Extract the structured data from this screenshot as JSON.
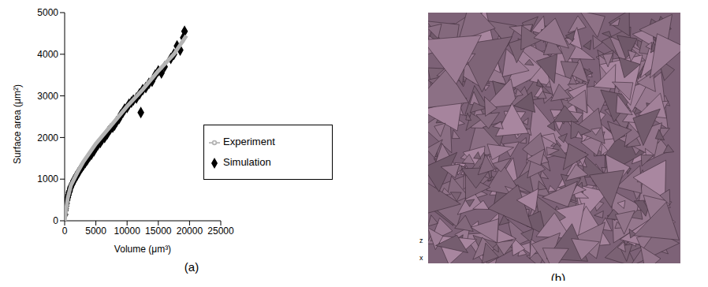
{
  "chart_data": {
    "type": "scatter",
    "title": "(a)",
    "x_label": "Volume (μm³)",
    "y_label": "Surface area (μm²)",
    "xlim": [
      0,
      25000
    ],
    "xticks": [
      0,
      5000,
      10000,
      15000,
      20000,
      25000
    ],
    "ylim": [
      0,
      5000
    ],
    "yticks": [
      0,
      1000,
      2000,
      3000,
      4000,
      5000
    ],
    "grid": false,
    "legend": "right",
    "series": [
      {
        "name": "Simulation",
        "color": "#000000",
        "marker": "diamond",
        "x": [
          50,
          100,
          150,
          200,
          300,
          400,
          500,
          600,
          700,
          800,
          900,
          1000,
          1200,
          1400,
          1600,
          1800,
          2000,
          2200,
          2500,
          2800,
          3000,
          3300,
          3600,
          4000,
          4300,
          4700,
          5000,
          5300,
          5700,
          6000,
          6400,
          6800,
          7000,
          7300,
          7700,
          8000,
          8300,
          8700,
          9000,
          9300,
          9600,
          10000,
          10300,
          10700,
          11000,
          11500,
          12000,
          12200,
          12500,
          13000,
          13500,
          14000,
          14500,
          15000,
          15500,
          16000,
          17000,
          17500,
          18000,
          18500,
          19000,
          19200
        ],
        "values": [
          150,
          250,
          300,
          350,
          420,
          500,
          560,
          620,
          680,
          720,
          780,
          820,
          880,
          950,
          1000,
          1060,
          1100,
          1160,
          1230,
          1300,
          1340,
          1400,
          1460,
          1550,
          1600,
          1680,
          1760,
          1820,
          1880,
          1950,
          2000,
          2080,
          2150,
          2200,
          2250,
          2300,
          2380,
          2450,
          2550,
          2600,
          2680,
          2720,
          2800,
          2850,
          2900,
          2950,
          3050,
          2600,
          3150,
          3200,
          3300,
          3350,
          3500,
          3600,
          3550,
          3700,
          3900,
          4000,
          4200,
          4100,
          4400,
          4550
        ]
      },
      {
        "name": "Experiment",
        "color": "#b4b4b4",
        "type": "line",
        "x": [
          0,
          500,
          1000,
          2000,
          3000,
          5000,
          7500,
          10000,
          12500,
          15000,
          17500,
          19500
        ],
        "values": [
          0,
          550,
          850,
          1150,
          1420,
          1850,
          2300,
          2750,
          3150,
          3600,
          4000,
          4450
        ]
      }
    ]
  },
  "image": {
    "label": "(b)",
    "axes": [
      "z",
      "x"
    ]
  }
}
